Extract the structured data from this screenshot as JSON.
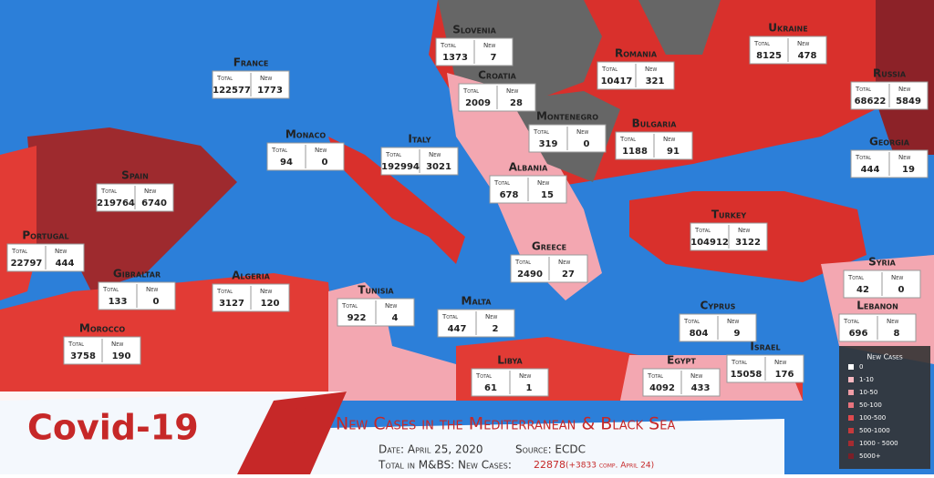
{
  "header": {
    "title": "Covid-19",
    "subtitle": "New Cases in the Mediterranean & Black Sea",
    "date": "Date: April 25, 2020",
    "source": "Source: ECDC",
    "total_label": "Total in M&BS: New Cases:",
    "total_value": 22878,
    "total_change": "(+3833 comp. April 24)"
  },
  "labels": {
    "total": "Total",
    "new": "New"
  },
  "countries": [
    {
      "name": "France",
      "total": 122577,
      "new": 1773
    },
    {
      "name": "Slovenia",
      "total": 1373,
      "new": 7
    },
    {
      "name": "Croatia",
      "total": 2009,
      "new": 28
    },
    {
      "name": "Romania",
      "total": 10417,
      "new": 321
    },
    {
      "name": "Ukraine",
      "total": 8125,
      "new": 478
    },
    {
      "name": "Russia",
      "total": 68622,
      "new": 5849
    },
    {
      "name": "Monaco",
      "total": 94,
      "new": 0
    },
    {
      "name": "Italy",
      "total": 192994,
      "new": 3021
    },
    {
      "name": "Montenegro",
      "total": 319,
      "new": 0
    },
    {
      "name": "Bulgaria",
      "total": 1188,
      "new": 91
    },
    {
      "name": "Georgia",
      "total": 444,
      "new": 19
    },
    {
      "name": "Spain",
      "total": 219764,
      "new": 6740
    },
    {
      "name": "Albania",
      "total": 678,
      "new": 15
    },
    {
      "name": "Turkey",
      "total": 104912,
      "new": 3122
    },
    {
      "name": "Portugal",
      "total": 22797,
      "new": 444
    },
    {
      "name": "Gibraltar",
      "total": 133,
      "new": 0
    },
    {
      "name": "Algeria",
      "total": 3127,
      "new": 120
    },
    {
      "name": "Greece",
      "total": 2490,
      "new": 27
    },
    {
      "name": "Syria",
      "total": 42,
      "new": 0
    },
    {
      "name": "Tunisia",
      "total": 922,
      "new": 4
    },
    {
      "name": "Malta",
      "total": 447,
      "new": 2
    },
    {
      "name": "Cyprus",
      "total": 804,
      "new": 9
    },
    {
      "name": "Lebanon",
      "total": 696,
      "new": 8
    },
    {
      "name": "Morocco",
      "total": 3758,
      "new": 190
    },
    {
      "name": "Libya",
      "total": 61,
      "new": 1
    },
    {
      "name": "Egypt",
      "total": 4092,
      "new": 433
    },
    {
      "name": "Israel",
      "total": 15058,
      "new": 176
    }
  ],
  "legend": {
    "title": "New Cases",
    "entries": [
      {
        "label": "0",
        "color": "#ffffff"
      },
      {
        "label": "1-10",
        "color": "#f6b8c0"
      },
      {
        "label": "10-50",
        "color": "#ef9ca5"
      },
      {
        "label": "50-100",
        "color": "#e8737d"
      },
      {
        "label": "100-500",
        "color": "#df4a4f"
      },
      {
        "label": "500-1000",
        "color": "#c63a3c"
      },
      {
        "label": "1000 - 5000",
        "color": "#a52b31"
      },
      {
        "label": "5000+",
        "color": "#7b1f28"
      }
    ]
  }
}
